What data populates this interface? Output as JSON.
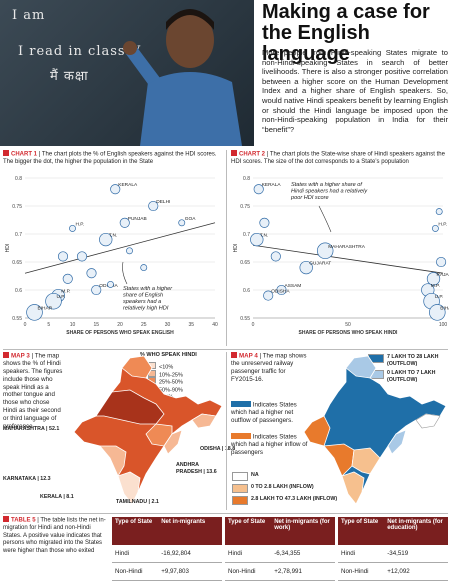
{
  "header": {
    "board_text": [
      "I am",
      "I read in class V",
      "मैं कक्षा"
    ],
    "title": "Making a case for the English language",
    "lede": "More people from Hindi-speaking States migrate to non-Hindi-speaking States in search of better livelihoods. There is also a stronger positive correlation between a higher score on the Human Development Index and a higher share of English speakers. So, would native Hindi speakers benefit by learning English or should the Hindi language be imposed upon the non-Hindi-speaking population in India for their “benefit”?"
  },
  "chart1": {
    "tag": "CHART 1",
    "caption": "The chart plots the % of English speakers against the HDI scores. The bigger the dot, the higher the population in the State",
    "annotation": [
      "States with a higher",
      "share of English",
      "speakers had a",
      "relatively high HDI"
    ],
    "chart_data": {
      "type": "scatter",
      "xlabel": "SHARE OF PERSONS WHO SPEAK ENGLISH",
      "ylabel": "HDI",
      "xlim": [
        0,
        40
      ],
      "ylim": [
        0.55,
        0.8
      ],
      "xticks": [
        "0",
        "5",
        "10",
        "15",
        "20",
        "25",
        "30",
        "35",
        "40"
      ],
      "yticks": [
        "0.8",
        "0.75",
        "0.7",
        "0.65",
        "0.6",
        "0.55"
      ],
      "points": [
        {
          "label": "KERALA",
          "x": 19,
          "y": 0.78,
          "size": 2
        },
        {
          "label": "DELHI",
          "x": 27,
          "y": 0.75,
          "size": 2
        },
        {
          "label": "GOA",
          "x": 33,
          "y": 0.72,
          "size": 1
        },
        {
          "label": "PUNJAB",
          "x": 21,
          "y": 0.72,
          "size": 2
        },
        {
          "label": "H.P.",
          "x": 10,
          "y": 0.71,
          "size": 1
        },
        {
          "label": "T.N.",
          "x": 17,
          "y": 0.69,
          "size": 3
        },
        {
          "label": "ODISHA",
          "x": 15,
          "y": 0.6,
          "size": 2
        },
        {
          "label": "M.P.",
          "x": 7,
          "y": 0.59,
          "size": 3
        },
        {
          "label": "U.P.",
          "x": 6,
          "y": 0.58,
          "size": 4
        },
        {
          "label": "BIHAR",
          "x": 2,
          "y": 0.56,
          "size": 4
        },
        {
          "label": "",
          "x": 12,
          "y": 0.66,
          "size": 2
        },
        {
          "label": "",
          "x": 14,
          "y": 0.63,
          "size": 2
        },
        {
          "label": "",
          "x": 9,
          "y": 0.62,
          "size": 2
        },
        {
          "label": "",
          "x": 22,
          "y": 0.67,
          "size": 1
        },
        {
          "label": "",
          "x": 25,
          "y": 0.64,
          "size": 1
        },
        {
          "label": "",
          "x": 8,
          "y": 0.66,
          "size": 2
        },
        {
          "label": "",
          "x": 18,
          "y": 0.61,
          "size": 1
        }
      ],
      "trend": [
        [
          0,
          0.63
        ],
        [
          40,
          0.72
        ]
      ]
    }
  },
  "chart2": {
    "tag": "CHART 2",
    "caption": "The chart plots the State-wise share of Hindi speakers against the HDI scores. The size of the dot corresponds to a State’s population",
    "annotation": [
      "States with a higher share of",
      "Hindi speakers had a relatively",
      "poor HDI score"
    ],
    "chart_data": {
      "type": "scatter",
      "xlabel": "SHARE OF PERSONS WHO SPEAK HINDI",
      "ylabel": "HDI",
      "xlim": [
        0,
        100
      ],
      "ylim": [
        0.55,
        0.8
      ],
      "xticks": [
        "0",
        "50",
        "100"
      ],
      "yticks": [
        "0.8",
        "0.75",
        "0.7",
        "0.65",
        "0.6",
        "0.55"
      ],
      "points": [
        {
          "label": "KERALA",
          "x": 3,
          "y": 0.78,
          "size": 2
        },
        {
          "label": "T.N.",
          "x": 2,
          "y": 0.69,
          "size": 3
        },
        {
          "label": "MAHARASHTRA",
          "x": 38,
          "y": 0.67,
          "size": 4
        },
        {
          "label": "GUJARAT",
          "x": 28,
          "y": 0.64,
          "size": 3
        },
        {
          "label": "ASSAM",
          "x": 15,
          "y": 0.6,
          "size": 2
        },
        {
          "label": "ODISHA",
          "x": 8,
          "y": 0.59,
          "size": 2
        },
        {
          "label": "H.P.",
          "x": 96,
          "y": 0.71,
          "size": 1
        },
        {
          "label": "RAJASTHAN",
          "x": 95,
          "y": 0.62,
          "size": 3
        },
        {
          "label": "M.P.",
          "x": 92,
          "y": 0.6,
          "size": 3
        },
        {
          "label": "U.P.",
          "x": 94,
          "y": 0.58,
          "size": 4
        },
        {
          "label": "BIHAR",
          "x": 97,
          "y": 0.56,
          "size": 4
        },
        {
          "label": "",
          "x": 6,
          "y": 0.72,
          "size": 2
        },
        {
          "label": "",
          "x": 12,
          "y": 0.66,
          "size": 2
        },
        {
          "label": "",
          "x": 98,
          "y": 0.74,
          "size": 1
        },
        {
          "label": "",
          "x": 99,
          "y": 0.65,
          "size": 2
        }
      ],
      "trend": [
        [
          0,
          0.68
        ],
        [
          100,
          0.63
        ]
      ]
    }
  },
  "map3": {
    "tag": "MAP 3",
    "caption": "The map shows the % of Hindi speakers. The figures include those who speak Hindi as a mother tongue and those who chose Hindi as their second or third language of preference",
    "legend_title": "% WHO SPEAK HINDI",
    "legend": [
      {
        "label": "<10%",
        "color": "#fbe0cf"
      },
      {
        "label": "10%-25%",
        "color": "#f6b894"
      },
      {
        "label": "25%-50%",
        "color": "#ef8a55"
      },
      {
        "label": "50%-90%",
        "color": "#d9552a"
      },
      {
        "label": ">90%",
        "color": "#a8331b"
      }
    ],
    "labels": [
      {
        "text": "MAHARASHTRA | 52.1"
      },
      {
        "text": "ODISHA | 18.8"
      },
      {
        "text": "ANDHRA"
      },
      {
        "text": "PRADESH | 13.6"
      },
      {
        "text": "KARNATAKA | 12.3"
      },
      {
        "text": "KERALA | 8.1"
      },
      {
        "text": "TAMILNADU | 2.1"
      }
    ]
  },
  "map4": {
    "tag": "MAP 4",
    "caption": "The map shows the unreserved railway passenger traffic for FY2015-16.",
    "indicates_outflow": "Indicates States which had a higher net outflow of passengers.",
    "indicates_inflow": "Indicates States which had a higher inflow of passengers",
    "legend": [
      {
        "label": "7 LAKH TO 28 LAKH (OUTFLOW)",
        "color": "#1f6fa8"
      },
      {
        "label": "0 LAKH TO 7 LAKH (OUTFLOW)",
        "color": "#a9c9e6"
      },
      {
        "label": "NA",
        "color": "#ffffff"
      },
      {
        "label": "0 TO 2.8 LAKH (INFLOW)",
        "color": "#f6c08e"
      },
      {
        "label": "2.8 LAKH TO 47.3 LAKH (INFLOW)",
        "color": "#e87a2c"
      }
    ]
  },
  "table5": {
    "tag": "TABLE 5",
    "caption": "The table lists the net in-migration for Hindi and non-Hindi States. A positive value indicates that persons who migrated into the States were higher than those who exited",
    "tables": [
      {
        "h1": "Type of State",
        "h2": "Net in-migrants",
        "rows": [
          [
            "Hindi",
            "-16,92,804"
          ],
          [
            "Non-Hindi",
            "+9,97,803"
          ]
        ]
      },
      {
        "h1": "Type of State",
        "h2": "Net in-migrants (for work)",
        "rows": [
          [
            "Hindi",
            "-6,34,355"
          ],
          [
            "Non-Hindi",
            "+2,78,991"
          ]
        ]
      },
      {
        "h1": "Type of State",
        "h2": "Net in-migrants (for education)",
        "rows": [
          [
            "Hindi",
            "-34,519"
          ],
          [
            "Non-Hindi",
            "+12,092"
          ]
        ]
      }
    ]
  },
  "colors": {
    "accent": "#d2292f",
    "table_header": "#7a1f1f",
    "dot": "#2f6aa6"
  }
}
